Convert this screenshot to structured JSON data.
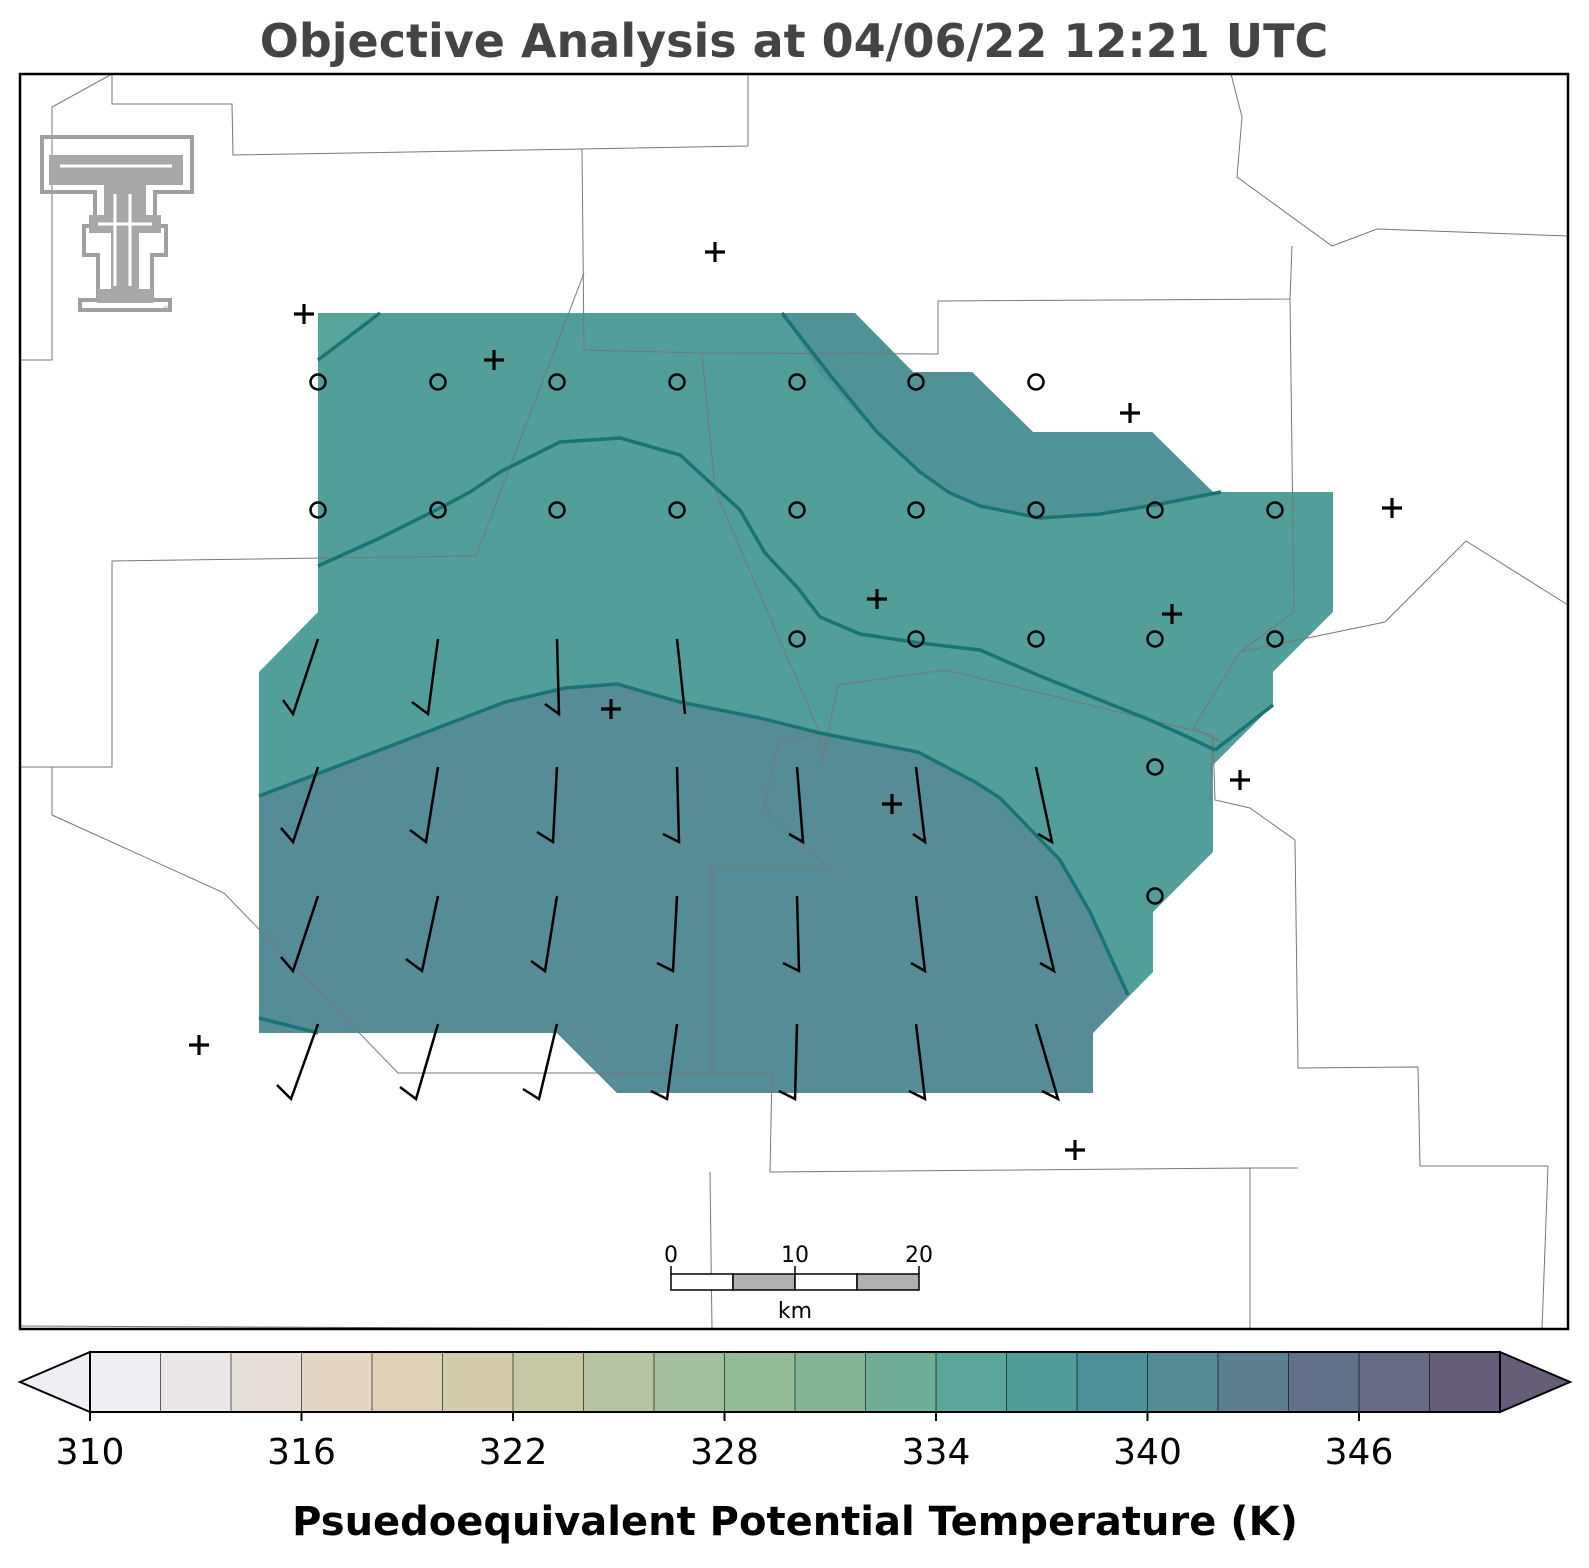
{
  "title": "Objective Analysis at 04/06/22 12:21 UTC",
  "colorbar": {
    "label": "Psuedoequivalent Potential Temperature (K)",
    "tick_labels": [
      "310",
      "316",
      "322",
      "328",
      "334",
      "340",
      "346"
    ],
    "min": 310,
    "max": 350,
    "step": 2,
    "colors": [
      "#efeef3",
      "#ece8e8",
      "#e6dfd8",
      "#e4d6c4",
      "#dfd1b8",
      "#d4cdad",
      "#c6c7a4",
      "#b5c3a2",
      "#a4bf9d",
      "#93bb98",
      "#83b498",
      "#6fad96",
      "#5aa698",
      "#4f9c9a",
      "#4f8f98",
      "#548b95",
      "#5b7f8e",
      "#62718a",
      "#676a83",
      "#665e78"
    ],
    "extend": "both"
  },
  "map": {
    "logo": "texas-tech-double-t-logo",
    "field_fill_color": "#5a9698",
    "contour_color": "#1a7474",
    "station_marker": "+",
    "calm_marker": "circle",
    "scale_bar": {
      "tick_labels": [
        "0",
        "10",
        "20"
      ],
      "unit": "km"
    }
  }
}
